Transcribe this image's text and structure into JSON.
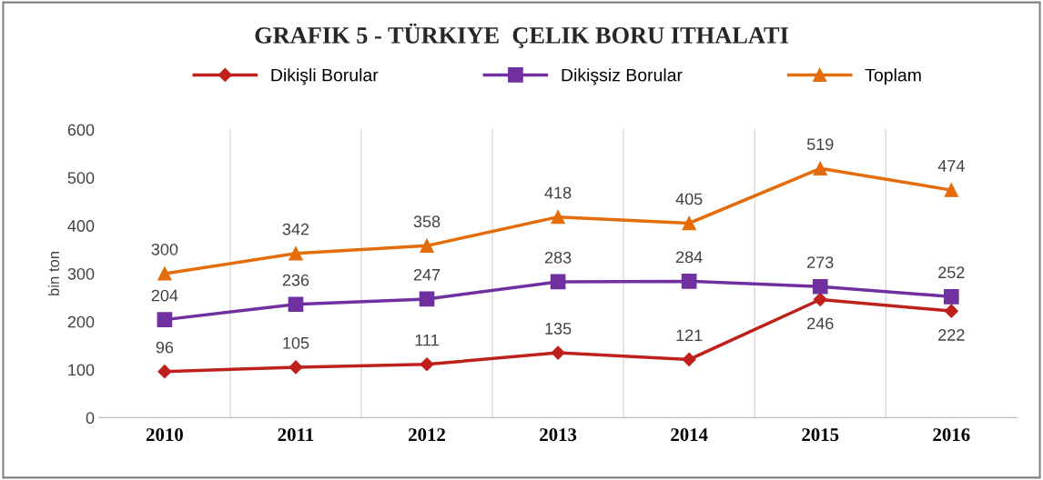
{
  "chart_data": {
    "type": "line",
    "title": "GRAFIK 5 - TÜRKIYE  ÇELIK BORU ITHALATI",
    "ylabel": "bin ton",
    "categories": [
      "2010",
      "2011",
      "2012",
      "2013",
      "2014",
      "2015",
      "2016"
    ],
    "series": [
      {
        "name": "Dikişli Borular",
        "color": "#c0201c",
        "marker": "diamond",
        "values": [
          96,
          105,
          111,
          135,
          121,
          246,
          222
        ]
      },
      {
        "name": "Dikişsiz Borular",
        "color": "#7030a0",
        "marker": "square",
        "values": [
          204,
          236,
          247,
          283,
          284,
          273,
          252
        ]
      },
      {
        "name": "Toplam",
        "color": "#e46c0a",
        "marker": "triangle",
        "values": [
          300,
          342,
          358,
          418,
          405,
          519,
          474
        ]
      }
    ],
    "ylim": [
      0,
      600
    ],
    "yticks": [
      0,
      100,
      200,
      300,
      400,
      500,
      600
    ],
    "grid": "x",
    "legend": "top",
    "data_labels": true,
    "line_style": "solid"
  }
}
